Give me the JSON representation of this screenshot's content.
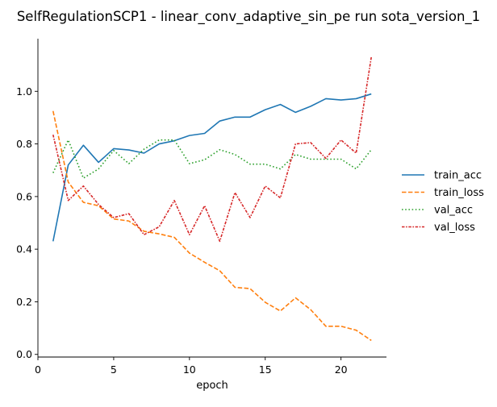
{
  "chart_data": {
    "type": "line",
    "title": "SelfRegulationSCP1 - linear_conv_adaptive_sin_pe run sota_version_1",
    "xlabel": "epoch",
    "ylabel": "",
    "xlim": [
      0,
      23
    ],
    "ylim": [
      -0.01,
      1.2
    ],
    "xticks": [
      0,
      5,
      10,
      15,
      20
    ],
    "yticks": [
      0.0,
      0.2,
      0.4,
      0.6,
      0.8,
      1.0
    ],
    "xtick_labels": [
      "0",
      "5",
      "10",
      "15",
      "20"
    ],
    "ytick_labels": [
      "0.0",
      "0.2",
      "0.4",
      "0.6",
      "0.8",
      "1.0"
    ],
    "grid": false,
    "legend_position": "right",
    "x": [
      1,
      2,
      3,
      4,
      5,
      6,
      7,
      8,
      9,
      10,
      11,
      12,
      13,
      14,
      15,
      16,
      17,
      18,
      19,
      20,
      21,
      22
    ],
    "series": [
      {
        "name": "train_acc",
        "color": "#1f77b4",
        "style": "solid",
        "values": [
          0.43,
          0.72,
          0.795,
          0.73,
          0.782,
          0.777,
          0.765,
          0.8,
          0.812,
          0.832,
          0.84,
          0.887,
          0.902,
          0.902,
          0.93,
          0.95,
          0.92,
          0.943,
          0.972,
          0.967,
          0.972,
          0.99
        ]
      },
      {
        "name": "train_loss",
        "color": "#ff7f0e",
        "style": "dashed",
        "values": [
          0.925,
          0.655,
          0.578,
          0.565,
          0.515,
          0.507,
          0.468,
          0.458,
          0.445,
          0.385,
          0.35,
          0.318,
          0.255,
          0.25,
          0.198,
          0.165,
          0.215,
          0.17,
          0.107,
          0.107,
          0.092,
          0.053
        ]
      },
      {
        "name": "val_acc",
        "color": "#2ca02c",
        "style": "dotted",
        "values": [
          0.69,
          0.815,
          0.67,
          0.705,
          0.775,
          0.725,
          0.78,
          0.815,
          0.815,
          0.725,
          0.74,
          0.778,
          0.76,
          0.723,
          0.723,
          0.705,
          0.76,
          0.742,
          0.742,
          0.742,
          0.705,
          0.778
        ]
      },
      {
        "name": "val_loss",
        "color": "#d62728",
        "style": "dashdot",
        "values": [
          0.835,
          0.585,
          0.64,
          0.57,
          0.52,
          0.535,
          0.455,
          0.485,
          0.585,
          0.455,
          0.565,
          0.43,
          0.615,
          0.52,
          0.64,
          0.595,
          0.8,
          0.805,
          0.745,
          0.815,
          0.765,
          1.13
        ]
      }
    ]
  }
}
